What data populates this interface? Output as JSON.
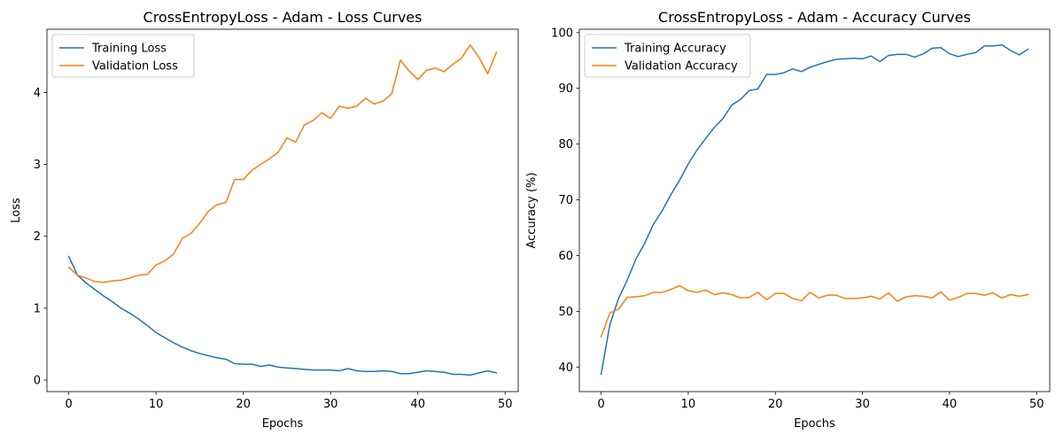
{
  "chart_data": [
    {
      "type": "line",
      "title": "CrossEntropyLoss - Adam - Loss Curves",
      "xlabel": "Epochs",
      "ylabel": "Loss",
      "xlim": [
        -2.5,
        51.5
      ],
      "ylim": [
        -0.16,
        4.88
      ],
      "xticks": [
        0,
        10,
        20,
        30,
        40,
        50
      ],
      "yticks": [
        0,
        1,
        2,
        3,
        4
      ],
      "legend_position": "top-left",
      "grid": false,
      "x": [
        0,
        1,
        2,
        3,
        4,
        5,
        6,
        7,
        8,
        9,
        10,
        11,
        12,
        13,
        14,
        15,
        16,
        17,
        18,
        19,
        20,
        21,
        22,
        23,
        24,
        25,
        26,
        27,
        28,
        29,
        30,
        31,
        32,
        33,
        34,
        35,
        36,
        37,
        38,
        39,
        40,
        41,
        42,
        43,
        44,
        45,
        46,
        47,
        48,
        49
      ],
      "series": [
        {
          "name": "Training Loss",
          "color": "#1f77b4",
          "values": [
            1.72,
            1.46,
            1.35,
            1.26,
            1.17,
            1.09,
            1.0,
            0.93,
            0.85,
            0.76,
            0.66,
            0.59,
            0.52,
            0.46,
            0.41,
            0.37,
            0.34,
            0.31,
            0.29,
            0.23,
            0.22,
            0.22,
            0.19,
            0.21,
            0.18,
            0.17,
            0.16,
            0.15,
            0.14,
            0.14,
            0.14,
            0.13,
            0.16,
            0.13,
            0.12,
            0.12,
            0.13,
            0.12,
            0.09,
            0.09,
            0.11,
            0.13,
            0.12,
            0.11,
            0.08,
            0.08,
            0.07,
            0.1,
            0.13,
            0.1
          ]
        },
        {
          "name": "Validation Loss",
          "color": "#ff7f0e",
          "values": [
            1.57,
            1.46,
            1.42,
            1.37,
            1.36,
            1.38,
            1.39,
            1.42,
            1.46,
            1.47,
            1.6,
            1.66,
            1.75,
            1.97,
            2.04,
            2.18,
            2.35,
            2.44,
            2.47,
            2.79,
            2.79,
            2.92,
            3.0,
            3.08,
            3.17,
            3.37,
            3.31,
            3.55,
            3.61,
            3.72,
            3.64,
            3.81,
            3.78,
            3.81,
            3.92,
            3.84,
            3.88,
            3.98,
            4.45,
            4.3,
            4.18,
            4.31,
            4.34,
            4.29,
            4.39,
            4.48,
            4.66,
            4.49,
            4.26,
            4.56
          ]
        }
      ]
    },
    {
      "type": "line",
      "title": "CrossEntropyLoss - Adam - Accuracy Curves",
      "xlabel": "Epochs",
      "ylabel": "Accuracy (%)",
      "xlim": [
        -2.5,
        51.5
      ],
      "ylim": [
        35.6,
        100.6
      ],
      "xticks": [
        0,
        10,
        20,
        30,
        40,
        50
      ],
      "yticks": [
        40,
        50,
        60,
        70,
        80,
        90,
        100
      ],
      "legend_position": "top-left",
      "grid": false,
      "x": [
        0,
        1,
        2,
        3,
        4,
        5,
        6,
        7,
        8,
        9,
        10,
        11,
        12,
        13,
        14,
        15,
        16,
        17,
        18,
        19,
        20,
        21,
        22,
        23,
        24,
        25,
        26,
        27,
        28,
        29,
        30,
        31,
        32,
        33,
        34,
        35,
        36,
        37,
        38,
        39,
        40,
        41,
        42,
        43,
        44,
        45,
        46,
        47,
        48,
        49
      ],
      "series": [
        {
          "name": "Training Accuracy",
          "color": "#1f77b4",
          "values": [
            38.7,
            47.6,
            52.3,
            55.6,
            59.4,
            62.2,
            65.6,
            68.0,
            70.9,
            73.5,
            76.4,
            78.9,
            81.0,
            83.0,
            84.6,
            87.0,
            88.0,
            89.6,
            89.9,
            92.5,
            92.5,
            92.8,
            93.5,
            93.0,
            93.8,
            94.3,
            94.8,
            95.2,
            95.3,
            95.4,
            95.3,
            95.8,
            94.8,
            95.9,
            96.1,
            96.1,
            95.6,
            96.2,
            97.2,
            97.3,
            96.2,
            95.7,
            96.1,
            96.4,
            97.6,
            97.6,
            97.8,
            96.8,
            96.0,
            97.0
          ]
        },
        {
          "name": "Validation Accuracy",
          "color": "#ff7f0e",
          "values": [
            45.4,
            49.7,
            50.4,
            52.5,
            52.6,
            52.8,
            53.4,
            53.4,
            53.9,
            54.6,
            53.7,
            53.4,
            53.8,
            53.0,
            53.3,
            53.0,
            52.4,
            52.5,
            53.4,
            52.1,
            53.2,
            53.2,
            52.3,
            51.9,
            53.4,
            52.4,
            52.9,
            52.9,
            52.3,
            52.3,
            52.4,
            52.7,
            52.2,
            53.3,
            51.8,
            52.6,
            52.8,
            52.7,
            52.4,
            53.5,
            52.0,
            52.5,
            53.2,
            53.2,
            52.9,
            53.3,
            52.4,
            53.0,
            52.7,
            53.0
          ]
        }
      ]
    }
  ]
}
